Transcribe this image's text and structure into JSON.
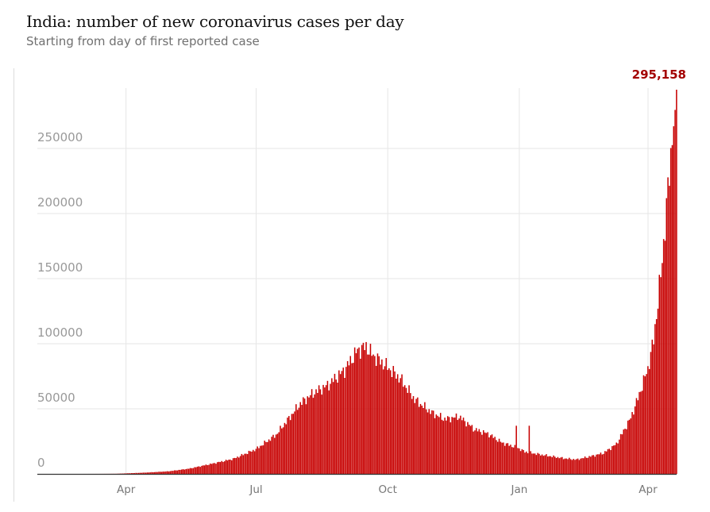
{
  "header": {
    "title": "India: number of new coronavirus cases per day",
    "subtitle": "Starting from day of first reported case"
  },
  "colors": {
    "bar": "#c70000",
    "peak_label": "#a30000",
    "gridline": "#e6e6e6",
    "axis": "#333333"
  },
  "chart_data": {
    "type": "bar",
    "title": "India: number of new coronavirus cases per day",
    "subtitle": "Starting from day of first reported case",
    "xlabel": "",
    "ylabel": "",
    "x_start": "2020-01-30",
    "x_end": "2021-04-21",
    "x_ticks": [
      {
        "date": "2020-04-01",
        "label": "Apr"
      },
      {
        "date": "2020-07-01",
        "label": "Jul"
      },
      {
        "date": "2020-10-01",
        "label": "Oct"
      },
      {
        "date": "2021-01-01",
        "label": "Jan"
      },
      {
        "date": "2021-04-01",
        "label": "Apr"
      }
    ],
    "y_ticks": [
      0,
      50000,
      100000,
      150000,
      200000,
      250000
    ],
    "y_tick_labels": [
      "0",
      "50000",
      "100000",
      "150000",
      "200000",
      "250000"
    ],
    "ylim": [
      0,
      295158
    ],
    "grid": true,
    "series": [
      {
        "points": [
          [
            "2020-01-30",
            0
          ],
          [
            "2020-02-15",
            0
          ],
          [
            "2020-03-01",
            0
          ],
          [
            "2020-03-15",
            30
          ],
          [
            "2020-03-25",
            100
          ],
          [
            "2020-04-01",
            400
          ],
          [
            "2020-04-15",
            1000
          ],
          [
            "2020-05-01",
            2000
          ],
          [
            "2020-05-15",
            4000
          ],
          [
            "2020-06-01",
            8000
          ],
          [
            "2020-06-15",
            11500
          ],
          [
            "2020-07-01",
            19000
          ],
          [
            "2020-07-15",
            30000
          ],
          [
            "2020-08-01",
            54000
          ],
          [
            "2020-08-10",
            62000
          ],
          [
            "2020-08-20",
            68000
          ],
          [
            "2020-09-01",
            80000
          ],
          [
            "2020-09-10",
            95000
          ],
          [
            "2020-09-16",
            97800
          ],
          [
            "2020-09-20",
            92000
          ],
          [
            "2020-10-01",
            82000
          ],
          [
            "2020-10-10",
            73000
          ],
          [
            "2020-10-20",
            57000
          ],
          [
            "2020-11-01",
            47000
          ],
          [
            "2020-11-10",
            42000
          ],
          [
            "2020-11-20",
            44000
          ],
          [
            "2020-12-01",
            34000
          ],
          [
            "2020-12-10",
            31000
          ],
          [
            "2020-12-20",
            24000
          ],
          [
            "2020-12-31",
            20000
          ],
          [
            "2021-01-05",
            17000
          ],
          [
            "2021-01-15",
            15000
          ],
          [
            "2021-02-01",
            12000
          ],
          [
            "2021-02-10",
            11000
          ],
          [
            "2021-02-20",
            13500
          ],
          [
            "2021-03-01",
            16000
          ],
          [
            "2021-03-10",
            23000
          ],
          [
            "2021-03-20",
            43000
          ],
          [
            "2021-03-25",
            58000
          ],
          [
            "2021-04-01",
            81000
          ],
          [
            "2021-04-05",
            103000
          ],
          [
            "2021-04-10",
            152000
          ],
          [
            "2021-04-15",
            217000
          ],
          [
            "2021-04-18",
            261000
          ],
          [
            "2021-04-19",
            273000
          ],
          [
            "2021-04-20",
            259000
          ],
          [
            "2021-04-21",
            295158
          ]
        ]
      }
    ],
    "spikes": [
      [
        "2020-12-30",
        37000
      ],
      [
        "2021-01-08",
        37000
      ]
    ],
    "annotations": [
      {
        "date": "2021-04-21",
        "value": 295158,
        "text": "295,158"
      }
    ]
  }
}
